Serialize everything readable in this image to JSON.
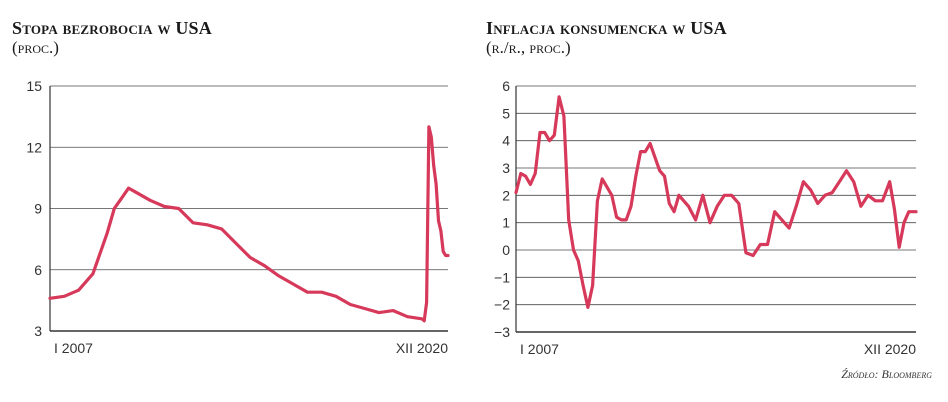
{
  "chart_data": [
    {
      "type": "line",
      "title": "Stopa bezrobocia w USA",
      "subtitle": "(proc.)",
      "ylim": [
        3,
        15
      ],
      "yticks": [
        3,
        6,
        9,
        12,
        15
      ],
      "x_tick_labels": [
        "I 2007",
        "XII 2020"
      ],
      "x_range": [
        "2007-01",
        "2020-12"
      ],
      "grid": "horizontal",
      "color": "#d6395a",
      "series": [
        {
          "x": [
            "2007-01",
            "2007-07",
            "2008-01",
            "2008-07",
            "2009-01",
            "2009-04",
            "2009-07",
            "2009-10",
            "2010-01",
            "2010-07",
            "2011-01",
            "2011-07",
            "2012-01",
            "2012-07",
            "2013-01",
            "2013-07",
            "2014-01",
            "2014-07",
            "2015-01",
            "2015-07",
            "2016-01",
            "2016-07",
            "2017-01",
            "2017-07",
            "2018-01",
            "2018-07",
            "2019-01",
            "2019-07",
            "2020-01",
            "2020-02",
            "2020-03",
            "2020-04",
            "2020-05",
            "2020-06",
            "2020-07",
            "2020-08",
            "2020-09",
            "2020-10",
            "2020-11",
            "2020-12"
          ],
          "values": [
            4.6,
            4.7,
            5.0,
            5.8,
            7.8,
            9.0,
            9.5,
            10.0,
            9.8,
            9.4,
            9.1,
            9.0,
            8.3,
            8.2,
            8.0,
            7.3,
            6.6,
            6.2,
            5.7,
            5.3,
            4.9,
            4.9,
            4.7,
            4.3,
            4.1,
            3.9,
            4.0,
            3.7,
            3.6,
            3.5,
            4.4,
            13.0,
            12.5,
            11.1,
            10.2,
            8.4,
            7.9,
            6.9,
            6.7,
            6.7
          ]
        }
      ]
    },
    {
      "type": "line",
      "title": "Inflacja konsumencka w USA",
      "subtitle": "(r./r., proc.)",
      "ylim": [
        -3,
        6
      ],
      "yticks": [
        -3,
        -2,
        -1,
        0,
        1,
        2,
        3,
        4,
        5,
        6
      ],
      "x_tick_labels": [
        "I 2007",
        "XII 2020"
      ],
      "x_range": [
        "2007-01",
        "2020-12"
      ],
      "grid": "horizontal",
      "color": "#d6395a",
      "series": [
        {
          "x": [
            "2007-01",
            "2007-03",
            "2007-05",
            "2007-07",
            "2007-09",
            "2007-11",
            "2008-01",
            "2008-03",
            "2008-05",
            "2008-07",
            "2008-09",
            "2008-11",
            "2009-01",
            "2009-03",
            "2009-05",
            "2009-07",
            "2009-09",
            "2009-11",
            "2010-01",
            "2010-03",
            "2010-05",
            "2010-07",
            "2010-09",
            "2010-11",
            "2011-01",
            "2011-03",
            "2011-05",
            "2011-07",
            "2011-09",
            "2011-11",
            "2012-01",
            "2012-03",
            "2012-05",
            "2012-07",
            "2012-09",
            "2012-11",
            "2013-01",
            "2013-04",
            "2013-07",
            "2013-10",
            "2014-01",
            "2014-04",
            "2014-07",
            "2014-10",
            "2015-01",
            "2015-04",
            "2015-07",
            "2015-10",
            "2016-01",
            "2016-04",
            "2016-07",
            "2016-10",
            "2017-01",
            "2017-04",
            "2017-07",
            "2017-10",
            "2018-01",
            "2018-04",
            "2018-07",
            "2018-10",
            "2019-01",
            "2019-04",
            "2019-07",
            "2019-10",
            "2020-01",
            "2020-03",
            "2020-05",
            "2020-07",
            "2020-09",
            "2020-12"
          ],
          "values": [
            2.1,
            2.8,
            2.7,
            2.4,
            2.8,
            4.3,
            4.3,
            4.0,
            4.2,
            5.6,
            4.9,
            1.1,
            0.0,
            -0.4,
            -1.3,
            -2.1,
            -1.3,
            1.8,
            2.6,
            2.3,
            2.0,
            1.2,
            1.1,
            1.1,
            1.6,
            2.7,
            3.6,
            3.6,
            3.9,
            3.4,
            2.9,
            2.7,
            1.7,
            1.4,
            2.0,
            1.8,
            1.6,
            1.1,
            2.0,
            1.0,
            1.6,
            2.0,
            2.0,
            1.7,
            -0.1,
            -0.2,
            0.2,
            0.2,
            1.4,
            1.1,
            0.8,
            1.6,
            2.5,
            2.2,
            1.7,
            2.0,
            2.1,
            2.5,
            2.9,
            2.5,
            1.6,
            2.0,
            1.8,
            1.8,
            2.5,
            1.5,
            0.1,
            1.0,
            1.4,
            1.4
          ]
        }
      ]
    }
  ],
  "source": "Źródło: Bloomberg"
}
